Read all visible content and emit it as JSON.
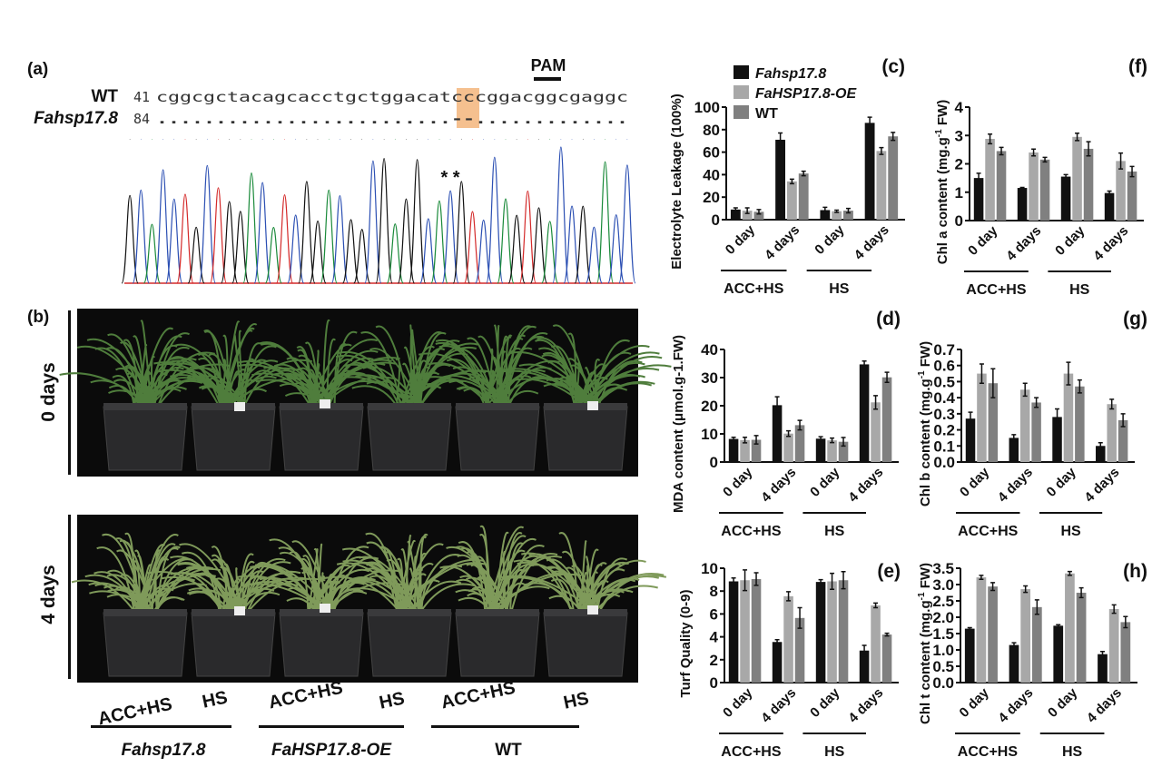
{
  "panel_a": {
    "label": "(a)",
    "pam_label": "PAM",
    "rows": [
      {
        "name": "WT",
        "start": "41",
        "sequence": "cggcgctacagcacctgctggacatcccggacggcgaggc"
      },
      {
        "name": "Fahsp17.8",
        "start": "84",
        "sequence": ".........................--............."
      }
    ],
    "asterisks": "* *",
    "highlight_color": "#f5c08f",
    "trace_colors": {
      "A": "#1a8a3a",
      "C": "#2b4fb3",
      "G": "#111111",
      "T": "#d42a2a"
    }
  },
  "panel_b": {
    "label": "(b)",
    "rows": [
      "0 days",
      "4 days"
    ],
    "treatments": [
      {
        "acc": "ACC+HS",
        "hs": "HS",
        "genotype": "Fahsp17.8"
      },
      {
        "acc": "ACC+HS",
        "hs": "HS",
        "genotype": "FaHSP17.8-OE"
      },
      {
        "acc": "ACC+HS",
        "hs": "HS",
        "genotype": "WT"
      }
    ]
  },
  "legend": [
    {
      "name": "Fahsp17.8",
      "color": "#111111"
    },
    {
      "name": "FaHSP17.8-OE",
      "color": "#a8a8a8"
    },
    {
      "name": "WT",
      "color": "#808080"
    }
  ],
  "chart_data": [
    {
      "id": "c",
      "panel_label": "(c)",
      "type": "bar",
      "ylabel": [
        "Electrolyte Leakage (100%)",
        "",
        ""
      ],
      "categories": [
        "0 day",
        "4 days",
        "0 day",
        "4 days"
      ],
      "groups": [
        "ACC+HS",
        "HS"
      ],
      "ylim": [
        0,
        100
      ],
      "yticks": [
        "0",
        "20",
        "40",
        "60",
        "80",
        "100"
      ],
      "series": [
        {
          "name": "Fahsp17.8",
          "values": [
            9,
            71,
            8.5,
            86
          ],
          "errors": [
            1.5,
            6,
            2.5,
            5
          ]
        },
        {
          "name": "FaHSP17.8-OE",
          "values": [
            8,
            34,
            7.5,
            61
          ],
          "errors": [
            2.5,
            2,
            1,
            3
          ]
        },
        {
          "name": "WT",
          "values": [
            7,
            41,
            8,
            74
          ],
          "errors": [
            2,
            2,
            2,
            3.5
          ]
        }
      ]
    },
    {
      "id": "f",
      "panel_label": "(f)",
      "type": "bar",
      "ylabel": [
        "Chl a content (mg.g",
        "-1",
        " FW)"
      ],
      "categories": [
        "0 day",
        "4 days",
        "0 day",
        "4 days"
      ],
      "groups": [
        "ACC+HS",
        "HS"
      ],
      "ylim": [
        0,
        4
      ],
      "yticks": [
        "0",
        "1",
        "2",
        "3",
        "4"
      ],
      "series": [
        {
          "name": "Fahsp17.8",
          "values": [
            1.5,
            1.15,
            1.55,
            0.97
          ],
          "errors": [
            0.17,
            0.02,
            0.07,
            0.07
          ]
        },
        {
          "name": "FaHSP17.8-OE",
          "values": [
            2.88,
            2.4,
            2.95,
            2.1
          ],
          "errors": [
            0.17,
            0.12,
            0.13,
            0.28
          ]
        },
        {
          "name": "WT",
          "values": [
            2.45,
            2.15,
            2.53,
            1.73
          ],
          "errors": [
            0.13,
            0.08,
            0.25,
            0.18
          ]
        }
      ]
    },
    {
      "id": "d",
      "panel_label": "(d)",
      "type": "bar",
      "ylabel": [
        "MDA content (μmol.g-1.FW)",
        "",
        ""
      ],
      "categories": [
        "0 day",
        "4 days",
        "0 day",
        "4 days"
      ],
      "groups": [
        "ACC+HS",
        "HS"
      ],
      "ylim": [
        0,
        40
      ],
      "yticks": [
        "0",
        "10",
        "20",
        "30",
        "40"
      ],
      "series": [
        {
          "name": "Fahsp17.8",
          "values": [
            8.2,
            20.2,
            8.3,
            34.7
          ],
          "errors": [
            0.6,
            3,
            0.7,
            1.2
          ]
        },
        {
          "name": "FaHSP17.8-OE",
          "values": [
            7.8,
            10.1,
            7.7,
            21.2
          ],
          "errors": [
            1,
            1,
            0.8,
            2.4
          ]
        },
        {
          "name": "WT",
          "values": [
            7.9,
            13.1,
            7.2,
            30.1
          ],
          "errors": [
            1.5,
            1.7,
            1.5,
            1.8
          ]
        }
      ]
    },
    {
      "id": "g",
      "panel_label": "(g)",
      "type": "bar",
      "ylabel": [
        "Chl b content (mg.g",
        "-1",
        " FW)"
      ],
      "categories": [
        "0 day",
        "4 days",
        "0 day",
        "4 days"
      ],
      "groups": [
        "ACC+HS",
        "HS"
      ],
      "ylim": [
        0,
        0.7
      ],
      "yticks": [
        "0.0",
        "0.1",
        "0.2",
        "0.3",
        "0.4",
        "0.5",
        "0.6",
        "0.7"
      ],
      "series": [
        {
          "name": "Fahsp17.8",
          "values": [
            0.27,
            0.15,
            0.28,
            0.1
          ],
          "errors": [
            0.04,
            0.02,
            0.05,
            0.02
          ]
        },
        {
          "name": "FaHSP17.8-OE",
          "values": [
            0.55,
            0.45,
            0.55,
            0.36
          ],
          "errors": [
            0.06,
            0.04,
            0.07,
            0.03
          ]
        },
        {
          "name": "WT",
          "values": [
            0.49,
            0.37,
            0.47,
            0.26
          ],
          "errors": [
            0.09,
            0.03,
            0.04,
            0.04
          ]
        }
      ]
    },
    {
      "id": "e",
      "panel_label": "(e)",
      "type": "bar",
      "ylabel": [
        "Turf Quality (0-9)",
        "",
        ""
      ],
      "categories": [
        "0 day",
        "4 days",
        "0 day",
        "4 days"
      ],
      "groups": [
        "ACC+HS",
        "HS"
      ],
      "ylim": [
        0,
        10
      ],
      "yticks": [
        "0",
        "2",
        "4",
        "6",
        "8",
        "10"
      ],
      "series": [
        {
          "name": "Fahsp17.8",
          "values": [
            8.85,
            3.55,
            8.8,
            2.8
          ],
          "errors": [
            0.3,
            0.2,
            0.2,
            0.45
          ]
        },
        {
          "name": "FaHSP17.8-OE",
          "values": [
            8.95,
            7.55,
            8.85,
            6.75
          ],
          "errors": [
            0.9,
            0.4,
            0.7,
            0.2
          ]
        },
        {
          "name": "WT",
          "values": [
            9.05,
            5.65,
            8.95,
            4.2
          ],
          "errors": [
            0.55,
            0.9,
            0.75,
            0.12
          ]
        }
      ]
    },
    {
      "id": "h",
      "panel_label": "(h)",
      "type": "bar",
      "ylabel": [
        "Chl t content (mg.g",
        "-1",
        " FW)"
      ],
      "categories": [
        "0 day",
        "4 days",
        "0 day",
        "4 days"
      ],
      "groups": [
        "ACC+HS",
        "HS"
      ],
      "ylim": [
        0,
        3.5
      ],
      "yticks": [
        "0.0",
        "0.5",
        "1.0",
        "1.5",
        "2.0",
        "2.5",
        "3.0",
        "3.5"
      ],
      "series": [
        {
          "name": "Fahsp17.8",
          "values": [
            1.65,
            1.15,
            1.74,
            0.87
          ],
          "errors": [
            0.03,
            0.07,
            0.03,
            0.08
          ]
        },
        {
          "name": "FaHSP17.8-OE",
          "values": [
            3.22,
            2.86,
            3.34,
            2.25
          ],
          "errors": [
            0.06,
            0.1,
            0.06,
            0.13
          ]
        },
        {
          "name": "WT",
          "values": [
            2.94,
            2.31,
            2.75,
            1.85
          ],
          "errors": [
            0.12,
            0.22,
            0.15,
            0.17
          ]
        }
      ]
    }
  ]
}
